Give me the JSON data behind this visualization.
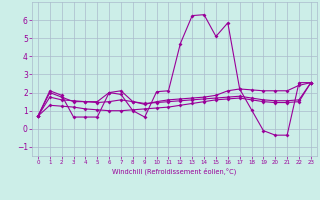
{
  "xlabel": "Windchill (Refroidissement éolien,°C)",
  "x": [
    0,
    1,
    2,
    3,
    4,
    5,
    6,
    7,
    8,
    9,
    10,
    11,
    12,
    13,
    14,
    15,
    16,
    17,
    18,
    19,
    20,
    21,
    22,
    23
  ],
  "line1": [
    0.7,
    2.1,
    1.85,
    0.65,
    0.65,
    0.65,
    2.0,
    1.9,
    1.0,
    0.65,
    2.05,
    2.1,
    4.7,
    6.25,
    6.3,
    5.1,
    5.85,
    2.2,
    1.05,
    -0.1,
    -0.35,
    -0.35,
    2.55,
    2.55
  ],
  "line2": [
    0.7,
    2.0,
    1.75,
    1.5,
    1.5,
    1.5,
    2.0,
    2.1,
    1.5,
    1.35,
    1.5,
    1.6,
    1.65,
    1.7,
    1.75,
    1.85,
    2.1,
    2.2,
    2.15,
    2.1,
    2.1,
    2.1,
    2.4,
    2.55
  ],
  "line3": [
    0.7,
    1.75,
    1.6,
    1.55,
    1.5,
    1.45,
    1.5,
    1.6,
    1.5,
    1.4,
    1.45,
    1.5,
    1.55,
    1.6,
    1.65,
    1.7,
    1.75,
    1.8,
    1.7,
    1.6,
    1.55,
    1.55,
    1.6,
    2.55
  ],
  "line4": [
    0.7,
    1.3,
    1.25,
    1.2,
    1.1,
    1.05,
    1.0,
    1.0,
    1.05,
    1.1,
    1.15,
    1.2,
    1.3,
    1.4,
    1.5,
    1.6,
    1.65,
    1.7,
    1.6,
    1.5,
    1.45,
    1.45,
    1.5,
    2.55
  ],
  "ylim": [
    -1.5,
    7.0
  ],
  "xlim": [
    -0.5,
    23.5
  ],
  "yticks": [
    -1,
    0,
    1,
    2,
    3,
    4,
    5,
    6
  ],
  "xticks": [
    0,
    1,
    2,
    3,
    4,
    5,
    6,
    7,
    8,
    9,
    10,
    11,
    12,
    13,
    14,
    15,
    16,
    17,
    18,
    19,
    20,
    21,
    22,
    23
  ],
  "line_color": "#990099",
  "bg_color": "#cceee8",
  "grid_color": "#aabbcc",
  "marker": "D",
  "marker_size": 2,
  "line_width": 0.8
}
